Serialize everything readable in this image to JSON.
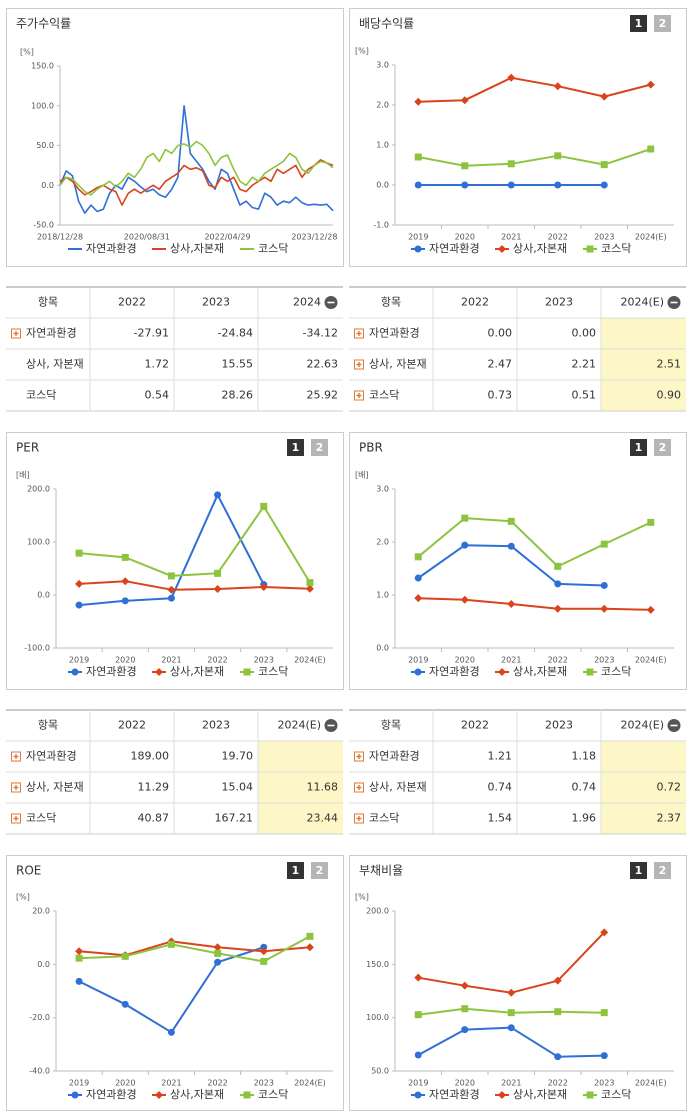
{
  "chart_data": [
    {
      "type": "line",
      "title": "주가수익률",
      "unit": "[%]",
      "markers": false,
      "categories": [
        "2018/12/28",
        null,
        null,
        null,
        null,
        null,
        null,
        null,
        null,
        null,
        null,
        null,
        null,
        null,
        "2020/08/31",
        null,
        null,
        null,
        null,
        null,
        null,
        null,
        null,
        null,
        null,
        null,
        null,
        "2022/04/29",
        null,
        null,
        null,
        null,
        null,
        null,
        null,
        null,
        null,
        null,
        null,
        null,
        null,
        "2023/12/28",
        null,
        null,
        null
      ],
      "ylim": [
        -50,
        150
      ],
      "yticks": [
        {
          "value": -50,
          "label": "-50.0"
        },
        {
          "value": 0,
          "label": "0.0"
        },
        {
          "value": 50,
          "label": "50.0"
        },
        {
          "value": 100,
          "label": "100.0"
        },
        {
          "value": 150,
          "label": "150.0"
        }
      ],
      "series": [
        {
          "name": "자연과환경",
          "color": "#2f6fd6",
          "values": [
            0,
            18,
            12,
            -20,
            -35,
            -25,
            -33,
            -30,
            -10,
            0,
            -5,
            10,
            5,
            -2,
            -8,
            -5,
            -12,
            -15,
            -5,
            10,
            100,
            40,
            30,
            20,
            5,
            -5,
            20,
            15,
            -5,
            -25,
            -20,
            -28,
            -30,
            -10,
            -15,
            -25,
            -20,
            -22,
            -15,
            -22,
            -25,
            -24,
            -25,
            -24,
            -32
          ]
        },
        {
          "name": "상사,자본재",
          "color": "#d9441c",
          "values": [
            5,
            10,
            5,
            -5,
            -12,
            -8,
            -3,
            0,
            -5,
            -8,
            -25,
            -10,
            -5,
            -10,
            -5,
            0,
            -5,
            5,
            10,
            15,
            25,
            20,
            22,
            18,
            0,
            -3,
            10,
            5,
            10,
            -5,
            -8,
            0,
            5,
            10,
            5,
            20,
            15,
            20,
            25,
            10,
            20,
            25,
            32,
            28,
            25
          ]
        },
        {
          "name": "코스닥",
          "color": "#8dc43f",
          "values": [
            0,
            10,
            8,
            0,
            -8,
            -12,
            -5,
            0,
            5,
            -2,
            5,
            15,
            10,
            20,
            35,
            40,
            30,
            45,
            40,
            50,
            52,
            48,
            55,
            50,
            40,
            25,
            35,
            38,
            20,
            5,
            0,
            10,
            5,
            15,
            20,
            25,
            30,
            40,
            35,
            20,
            15,
            25,
            30,
            28,
            22
          ]
        }
      ]
    },
    {
      "type": "line",
      "title": "배당수익률",
      "unit": "[%]",
      "buttons": [
        "1",
        "2"
      ],
      "markers": true,
      "categories": [
        "2019",
        "2020",
        "2021",
        "2022",
        "2023",
        "2024(E)"
      ],
      "ylim": [
        -1,
        3
      ],
      "yticks": [
        {
          "value": -1,
          "label": "-1.0"
        },
        {
          "value": 0,
          "label": "0.0"
        },
        {
          "value": 1,
          "label": "1.0"
        },
        {
          "value": 2,
          "label": "2.0"
        },
        {
          "value": 3,
          "label": "3.0"
        }
      ],
      "series": [
        {
          "name": "자연과환경",
          "color": "#2f6fd6",
          "marker": "circle",
          "values": [
            0,
            0,
            0,
            0,
            0,
            null
          ]
        },
        {
          "name": "상사,자본재",
          "color": "#d9441c",
          "marker": "diamond",
          "values": [
            2.08,
            2.12,
            2.68,
            2.47,
            2.21,
            2.51
          ]
        },
        {
          "name": "코스닥",
          "color": "#8dc43f",
          "marker": "square",
          "values": [
            0.7,
            0.48,
            0.53,
            0.73,
            0.51,
            0.9
          ]
        }
      ]
    },
    {
      "type": "line",
      "title": "PER",
      "unit": "[배]",
      "buttons": [
        "1",
        "2"
      ],
      "markers": true,
      "categories": [
        "2019",
        "2020",
        "2021",
        "2022",
        "2023",
        "2024(E)"
      ],
      "ylim": [
        -100,
        200
      ],
      "yticks": [
        {
          "value": -100,
          "label": "-100.0"
        },
        {
          "value": 0,
          "label": "0.0"
        },
        {
          "value": 100,
          "label": "100.0"
        },
        {
          "value": 200,
          "label": "200.0"
        }
      ],
      "series": [
        {
          "name": "자연과환경",
          "color": "#2f6fd6",
          "marker": "circle",
          "values": [
            -19,
            -11,
            -6,
            189.0,
            19.7,
            null
          ]
        },
        {
          "name": "상사,자본재",
          "color": "#d9441c",
          "marker": "diamond",
          "values": [
            21,
            26,
            10,
            11.29,
            15.04,
            11.68
          ]
        },
        {
          "name": "코스닥",
          "color": "#8dc43f",
          "marker": "square",
          "values": [
            79,
            71,
            36,
            40.87,
            167.21,
            23.44
          ]
        }
      ]
    },
    {
      "type": "line",
      "title": "PBR",
      "unit": "[배]",
      "buttons": [
        "1",
        "2"
      ],
      "markers": true,
      "categories": [
        "2019",
        "2020",
        "2021",
        "2022",
        "2023",
        "2024(E)"
      ],
      "ylim": [
        0,
        3
      ],
      "yticks": [
        {
          "value": 0,
          "label": "0.0"
        },
        {
          "value": 1,
          "label": "1.0"
        },
        {
          "value": 2,
          "label": "2.0"
        },
        {
          "value": 3,
          "label": "3.0"
        }
      ],
      "series": [
        {
          "name": "자연과환경",
          "color": "#2f6fd6",
          "marker": "circle",
          "values": [
            1.32,
            1.94,
            1.92,
            1.21,
            1.18,
            null
          ]
        },
        {
          "name": "상사,자본재",
          "color": "#d9441c",
          "marker": "diamond",
          "values": [
            0.94,
            0.91,
            0.83,
            0.74,
            0.74,
            0.72
          ]
        },
        {
          "name": "코스닥",
          "color": "#8dc43f",
          "marker": "square",
          "values": [
            1.72,
            2.45,
            2.39,
            1.54,
            1.96,
            2.37
          ]
        }
      ]
    },
    {
      "type": "line",
      "title": "ROE",
      "unit": "[%]",
      "buttons": [
        "1",
        "2"
      ],
      "markers": true,
      "categories": [
        "2019",
        "2020",
        "2021",
        "2022",
        "2023",
        "2024(E)"
      ],
      "ylim": [
        -40,
        20
      ],
      "yticks": [
        {
          "value": -40,
          "label": "-40.0"
        },
        {
          "value": -20,
          "label": "-20.0"
        },
        {
          "value": 0,
          "label": "0.0"
        },
        {
          "value": 20,
          "label": "20.0"
        }
      ],
      "series": [
        {
          "name": "자연과환경",
          "color": "#2f6fd6",
          "marker": "circle",
          "values": [
            -6.4,
            -15,
            -25.5,
            0.8,
            6.4,
            null
          ]
        },
        {
          "name": "상사,자본재",
          "color": "#d9441c",
          "marker": "diamond",
          "values": [
            4.9,
            3.4,
            8.6,
            6.4,
            4.9,
            6.4
          ]
        },
        {
          "name": "코스닥",
          "color": "#8dc43f",
          "marker": "square",
          "values": [
            2.3,
            3,
            7.5,
            4.1,
            1.1,
            10.5
          ]
        }
      ]
    },
    {
      "type": "line",
      "title": "부채비율",
      "unit": "[%]",
      "buttons": [
        "1",
        "2"
      ],
      "markers": true,
      "categories": [
        "2019",
        "2020",
        "2021",
        "2022",
        "2023",
        "2024(E)"
      ],
      "ylim": [
        50,
        200
      ],
      "yticks": [
        {
          "value": 50,
          "label": "50.0"
        },
        {
          "value": 100,
          "label": "100.0"
        },
        {
          "value": 150,
          "label": "150.0"
        },
        {
          "value": 200,
          "label": "200.0"
        }
      ],
      "series": [
        {
          "name": "자연과환경",
          "color": "#2f6fd6",
          "marker": "circle",
          "values": [
            65,
            88.8,
            90.6,
            63.4,
            64.4,
            null
          ]
        },
        {
          "name": "상사,자본재",
          "color": "#d9441c",
          "marker": "diamond",
          "values": [
            137.5,
            130,
            123.4,
            134.7,
            180,
            null
          ]
        },
        {
          "name": "코스닥",
          "color": "#8dc43f",
          "marker": "square",
          "values": [
            102.8,
            108.4,
            104.7,
            105.6,
            104.7,
            null
          ]
        }
      ]
    }
  ],
  "tables": [
    {
      "headers": [
        "항목",
        "2022",
        "2023",
        "2024"
      ],
      "highlight_last": false,
      "rows": [
        {
          "name": "자연과환경",
          "expandable": true,
          "values": [
            "-27.91",
            "-24.84",
            "-34.12"
          ]
        },
        {
          "name": "상사, 자본재",
          "expandable": false,
          "values": [
            "1.72",
            "15.55",
            "22.63"
          ]
        },
        {
          "name": "코스닥",
          "expandable": false,
          "values": [
            "0.54",
            "28.26",
            "25.92"
          ]
        }
      ]
    },
    {
      "headers": [
        "항목",
        "2022",
        "2023",
        "2024(E)"
      ],
      "highlight_last": true,
      "rows": [
        {
          "name": "자연과환경",
          "expandable": true,
          "values": [
            "0.00",
            "0.00",
            null
          ]
        },
        {
          "name": "상사, 자본재",
          "expandable": true,
          "values": [
            "2.47",
            "2.21",
            "2.51"
          ]
        },
        {
          "name": "코스닥",
          "expandable": true,
          "values": [
            "0.73",
            "0.51",
            "0.90"
          ]
        }
      ]
    },
    {
      "headers": [
        "항목",
        "2022",
        "2023",
        "2024(E)"
      ],
      "highlight_last": true,
      "rows": [
        {
          "name": "자연과환경",
          "expandable": true,
          "values": [
            "189.00",
            "19.70",
            null
          ]
        },
        {
          "name": "상사, 자본재",
          "expandable": true,
          "values": [
            "11.29",
            "15.04",
            "11.68"
          ]
        },
        {
          "name": "코스닥",
          "expandable": true,
          "values": [
            "40.87",
            "167.21",
            "23.44"
          ]
        }
      ]
    },
    {
      "headers": [
        "항목",
        "2022",
        "2023",
        "2024(E)"
      ],
      "highlight_last": true,
      "rows": [
        {
          "name": "자연과환경",
          "expandable": true,
          "values": [
            "1.21",
            "1.18",
            null
          ]
        },
        {
          "name": "상사, 자본재",
          "expandable": true,
          "values": [
            "0.74",
            "0.74",
            "0.72"
          ]
        },
        {
          "name": "코스닥",
          "expandable": true,
          "values": [
            "1.54",
            "1.96",
            "2.37"
          ]
        }
      ]
    }
  ]
}
